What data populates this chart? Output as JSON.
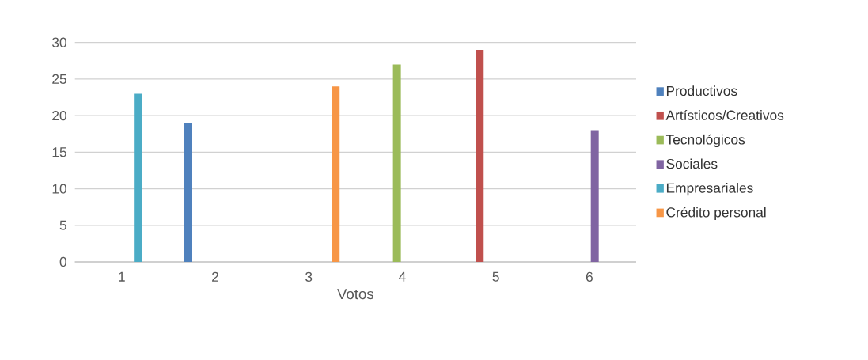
{
  "chart_data": {
    "type": "bar",
    "xlabel": "Votos",
    "categories": [
      "1",
      "2",
      "3",
      "4",
      "5",
      "6"
    ],
    "series": [
      {
        "name": "Productivos",
        "color": "#4f81bd",
        "values": [
          null,
          19,
          null,
          null,
          null,
          null
        ]
      },
      {
        "name": "Artísticos/Creativos",
        "color": "#c0504d",
        "values": [
          null,
          null,
          null,
          null,
          29,
          null
        ]
      },
      {
        "name": "Tecnológicos",
        "color": "#9bbb59",
        "values": [
          null,
          null,
          null,
          27,
          null,
          null
        ]
      },
      {
        "name": "Sociales",
        "color": "#8064a2",
        "values": [
          null,
          null,
          null,
          null,
          null,
          18
        ]
      },
      {
        "name": "Empresariales",
        "color": "#4bacc6",
        "values": [
          23,
          null,
          null,
          null,
          null,
          null
        ]
      },
      {
        "name": "Crédito personal",
        "color": "#f79646",
        "values": [
          null,
          null,
          24,
          null,
          null,
          null
        ]
      }
    ],
    "ylim": [
      0,
      30
    ],
    "yticks": [
      0,
      5,
      10,
      15,
      20,
      25,
      30
    ],
    "grid": "y",
    "legend": "right"
  }
}
